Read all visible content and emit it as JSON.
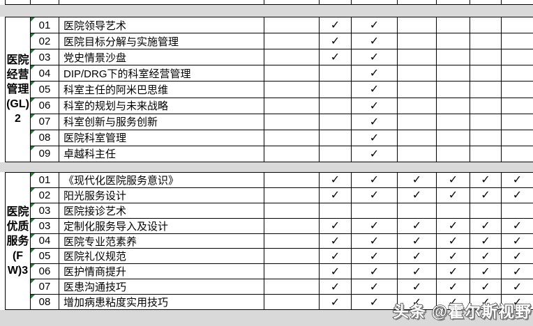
{
  "table": {
    "sections": [
      {
        "group_label": "医院\n经营\n管理\n(GL)\n2",
        "rows": [
          {
            "num": "01",
            "name": "医院领导艺术",
            "checks": [
              "✓",
              "✓",
              "",
              "",
              "",
              ""
            ]
          },
          {
            "num": "02",
            "name": "医院目标分解与实施管理",
            "checks": [
              "✓",
              "✓",
              "",
              "",
              "",
              ""
            ]
          },
          {
            "num": "03",
            "name": "党史情景沙盘",
            "checks": [
              "✓",
              "✓",
              "",
              "",
              "",
              ""
            ]
          },
          {
            "num": "04",
            "name": "DIP/DRG下的科室经营管理",
            "checks": [
              "",
              "✓",
              "",
              "",
              "",
              ""
            ]
          },
          {
            "num": "05",
            "name": "科室主任的阿米巴思维",
            "checks": [
              "",
              "✓",
              "",
              "",
              "",
              ""
            ]
          },
          {
            "num": "06",
            "name": "科室的规划与未来战略",
            "checks": [
              "",
              "✓",
              "",
              "",
              "",
              ""
            ]
          },
          {
            "num": "07",
            "name": "科室创新与服务创新",
            "checks": [
              "",
              "✓",
              "",
              "",
              "",
              ""
            ]
          },
          {
            "num": "08",
            "name": "医院科室管理",
            "checks": [
              "",
              "✓",
              "",
              "",
              "",
              ""
            ]
          },
          {
            "num": "09",
            "name": "卓越科主任",
            "checks": [
              "",
              "✓",
              "",
              "",
              "",
              ""
            ]
          }
        ]
      },
      {
        "group_label": "医院\n优质\n服务\n(F\nW)3",
        "rows": [
          {
            "num": "01",
            "name": "《现代化医院服务意识》",
            "checks": [
              "✓",
              "✓",
              "✓",
              "✓",
              "✓",
              "✓"
            ]
          },
          {
            "num": "02",
            "name": "阳光服务设计",
            "checks": [
              "✓",
              "✓",
              "✓",
              "✓",
              "✓",
              "✓"
            ]
          },
          {
            "num": "03",
            "name": "医院接诊艺术",
            "checks": [
              "",
              "",
              "",
              "",
              "",
              ""
            ]
          },
          {
            "num": "03",
            "name": "定制化服务导入及设计",
            "checks": [
              "✓",
              "✓",
              "✓",
              "✓",
              "✓",
              "✓"
            ]
          },
          {
            "num": "04",
            "name": "医院专业范素养",
            "checks": [
              "✓",
              "✓",
              "✓",
              "✓",
              "✓",
              "✓"
            ]
          },
          {
            "num": "05",
            "name": "医院礼仪规范",
            "checks": [
              "✓",
              "✓",
              "✓",
              "✓",
              "✓",
              "✓"
            ]
          },
          {
            "num": "06",
            "name": "医护情商提升",
            "checks": [
              "✓",
              "✓",
              "✓",
              "✓",
              "✓",
              "✓"
            ]
          },
          {
            "num": "07",
            "name": "医患沟通技巧",
            "checks": [
              "✓",
              "✓",
              "✓",
              "✓",
              "✓",
              "✓"
            ]
          },
          {
            "num": "08",
            "name": "增加病患粘度实用技巧",
            "checks": [
              "✓",
              "✓",
              "✓",
              "✓",
              "✓",
              "✓"
            ]
          }
        ]
      }
    ]
  },
  "watermark": "头条 @霍尔斯视野",
  "colors": {
    "grid-line": "#000000",
    "band-fill": "#d9d9d9",
    "indicator-green": "#1f7a33",
    "watermark-text": "#ffffff",
    "watermark-outline": "#1c1c1c"
  }
}
